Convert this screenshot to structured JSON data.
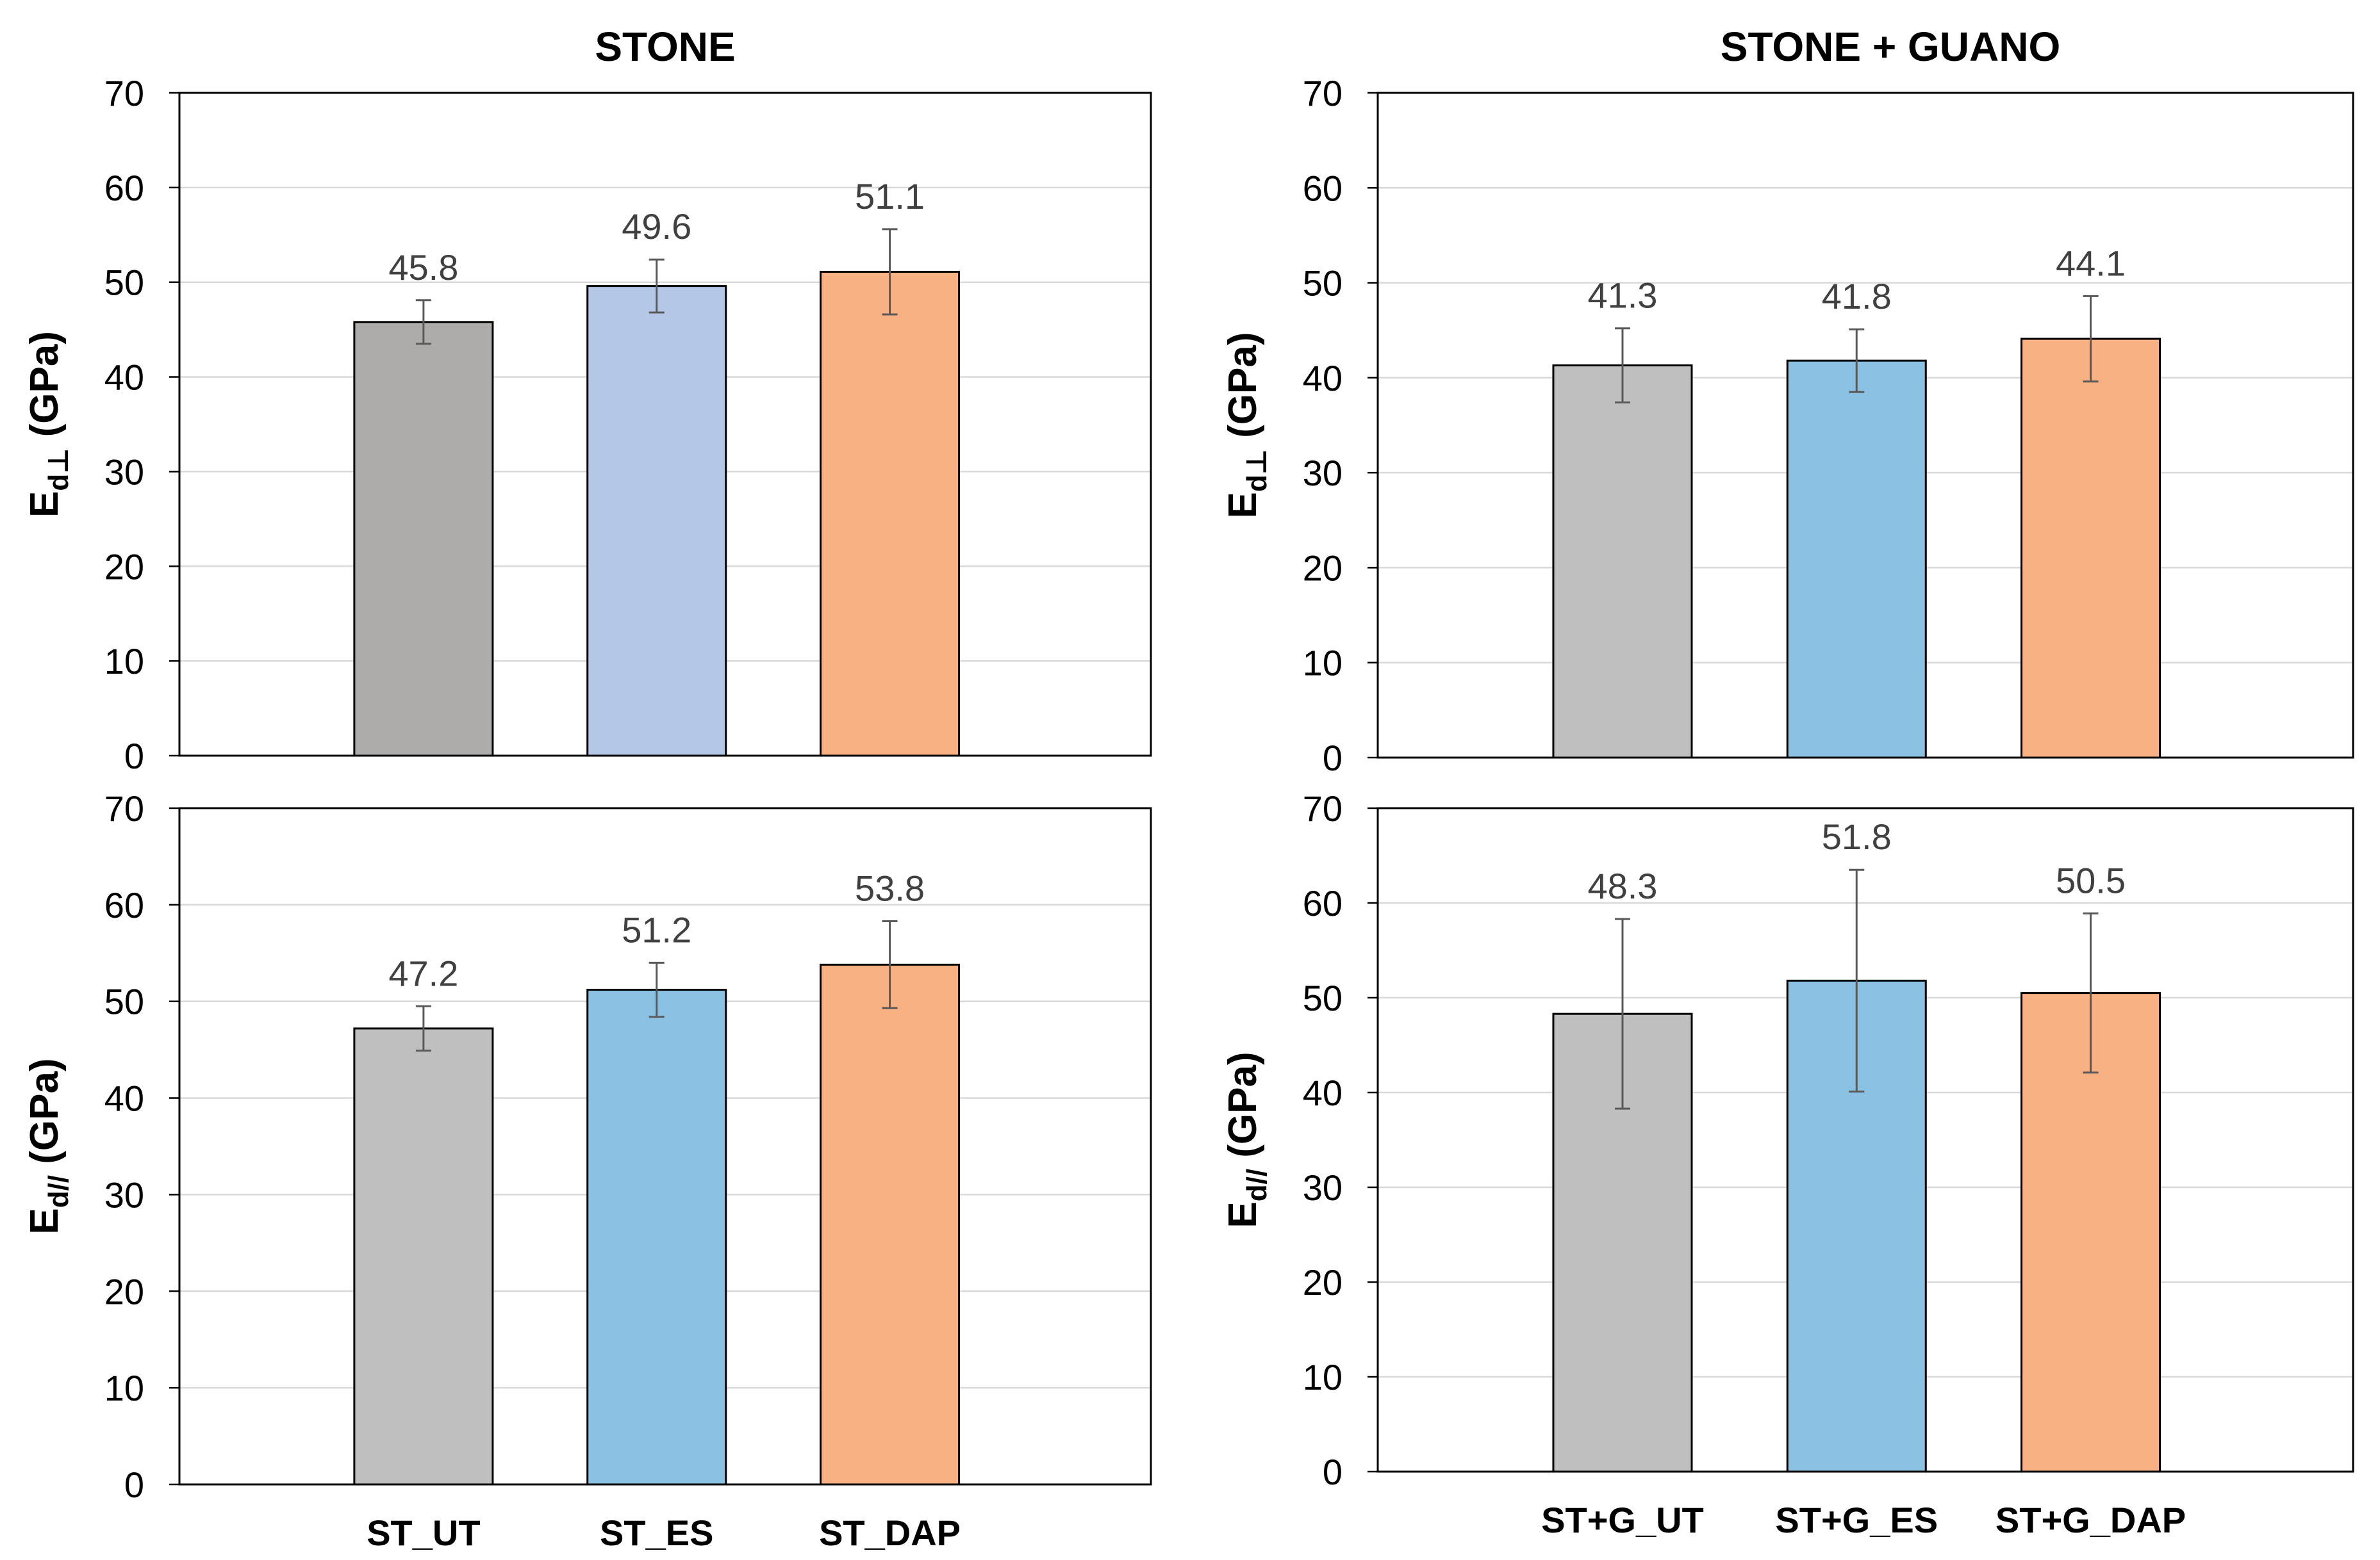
{
  "figure": {
    "column_titles": [
      "STONE",
      "STONE + GUANO"
    ]
  },
  "chart_data": [
    {
      "type": "bar",
      "panel": "top-left",
      "column": "STONE",
      "ylabel": {
        "main": "E",
        "sub": "d⊥",
        "unit": " (GPa)"
      },
      "categories": [
        "ST_UT",
        "ST_ES",
        "ST_DAP"
      ],
      "show_category_labels": false,
      "values": [
        45.8,
        49.6,
        51.1
      ],
      "errors": [
        2.3,
        2.8,
        4.5
      ],
      "data_labels": [
        "45.8",
        "49.6",
        "51.1"
      ],
      "colors": [
        "#AEABAB",
        "#B4C7E7",
        "#F8B183"
      ],
      "ylim": [
        0,
        70
      ],
      "yticks": [
        0,
        10,
        20,
        30,
        40,
        50,
        60,
        70
      ],
      "grid": true,
      "legend": "none"
    },
    {
      "type": "bar",
      "panel": "bottom-left",
      "column": "STONE",
      "ylabel": {
        "main": "E",
        "sub": "d//",
        "unit": " (GPa)"
      },
      "categories": [
        "ST_UT",
        "ST_ES",
        "ST_DAP"
      ],
      "show_category_labels": true,
      "values": [
        47.2,
        51.2,
        53.8
      ],
      "errors": [
        2.3,
        2.8,
        4.5
      ],
      "data_labels": [
        "47.2",
        "51.2",
        "53.8"
      ],
      "colors": [
        "#BFBFBF",
        "#8BC1E3",
        "#F8B183"
      ],
      "ylim": [
        0,
        70
      ],
      "yticks": [
        0,
        10,
        20,
        30,
        40,
        50,
        60,
        70
      ],
      "grid": true,
      "legend": "none"
    },
    {
      "type": "bar",
      "panel": "top-right",
      "column": "STONE + GUANO",
      "ylabel": {
        "main": "E",
        "sub": "d⊥",
        "unit": " (GPa)"
      },
      "categories": [
        "ST+G_UT",
        "ST+G_ES",
        "ST+G_DAP"
      ],
      "show_category_labels": false,
      "values": [
        41.3,
        41.8,
        44.1
      ],
      "errors": [
        3.9,
        3.3,
        4.5
      ],
      "data_labels": [
        "41.3",
        "41.8",
        "44.1"
      ],
      "colors": [
        "#BFBFBF",
        "#8BC1E3",
        "#F8B183"
      ],
      "ylim": [
        0,
        70
      ],
      "yticks": [
        0,
        10,
        20,
        30,
        40,
        50,
        60,
        70
      ],
      "grid": true,
      "legend": "none"
    },
    {
      "type": "bar",
      "panel": "bottom-right",
      "column": "STONE + GUANO",
      "ylabel": {
        "main": "E",
        "sub": "d//",
        "unit": " (GPa)"
      },
      "categories": [
        "ST+G_UT",
        "ST+G_ES",
        "ST+G_DAP"
      ],
      "show_category_labels": true,
      "values": [
        48.3,
        51.8,
        50.5
      ],
      "errors": [
        10.0,
        11.7,
        8.4
      ],
      "data_labels": [
        "48.3",
        "51.8",
        "50.5"
      ],
      "colors": [
        "#BFBFBF",
        "#8BC1E3",
        "#F8B183"
      ],
      "ylim": [
        0,
        70
      ],
      "yticks": [
        0,
        10,
        20,
        30,
        40,
        50,
        60,
        70
      ],
      "grid": true,
      "legend": "none"
    }
  ]
}
